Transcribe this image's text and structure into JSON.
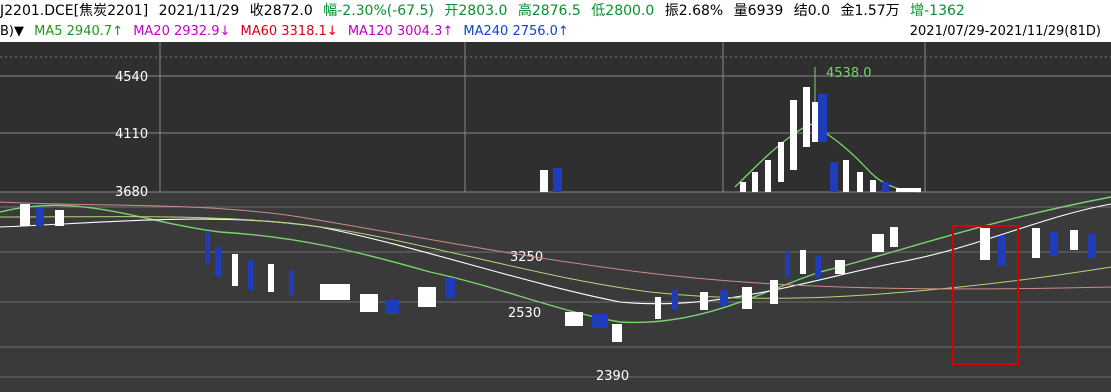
{
  "header": {
    "instrument": "J2201.DCE[焦炭2201]",
    "date": "2021/11/29",
    "close": "收2872.0",
    "change": "幅-2.30%(-67.5)",
    "open": "开2803.0",
    "high": "高2876.5",
    "low": "低2800.0",
    "amplitude": "振2.68%",
    "volume": "量6939",
    "settle": "结0.0",
    "amount": "金1.57万",
    "oi_change": "增-1362"
  },
  "ma_row": {
    "prefix": "B)▼",
    "ma5": "MA5 2940.7↑",
    "ma20": "MA20 2932.9↓",
    "ma60": "MA60 3318.1↓",
    "ma120": "MA120 3004.3↑",
    "ma240": "MA240 2756.0↑",
    "range": "2021/07/29-2021/11/29(81D)"
  },
  "colors": {
    "background": "#3a3a3a",
    "up_candle": "#ffffff",
    "down_candle": "#1f3dbb",
    "ma5": "#7ad36e",
    "ma20": "#ffffff",
    "ma60": "#d6001c",
    "highlight_box": "#d60000",
    "axis_label": "#ffffff"
  },
  "chart_data": {
    "type": "candlestick",
    "y_ticks": [
      4540,
      4110,
      3680,
      3250
    ],
    "price_labels": [
      {
        "text": "4540",
        "value": 4540
      },
      {
        "text": "4110",
        "value": 4110
      },
      {
        "text": "3680",
        "value": 3680
      },
      {
        "text": "3250",
        "value": 3250
      },
      {
        "text": "2530",
        "value": 2530
      },
      {
        "text": "2390",
        "value": 2390
      }
    ],
    "peak_label": "4538.0",
    "peak_value": 4538.0
  }
}
